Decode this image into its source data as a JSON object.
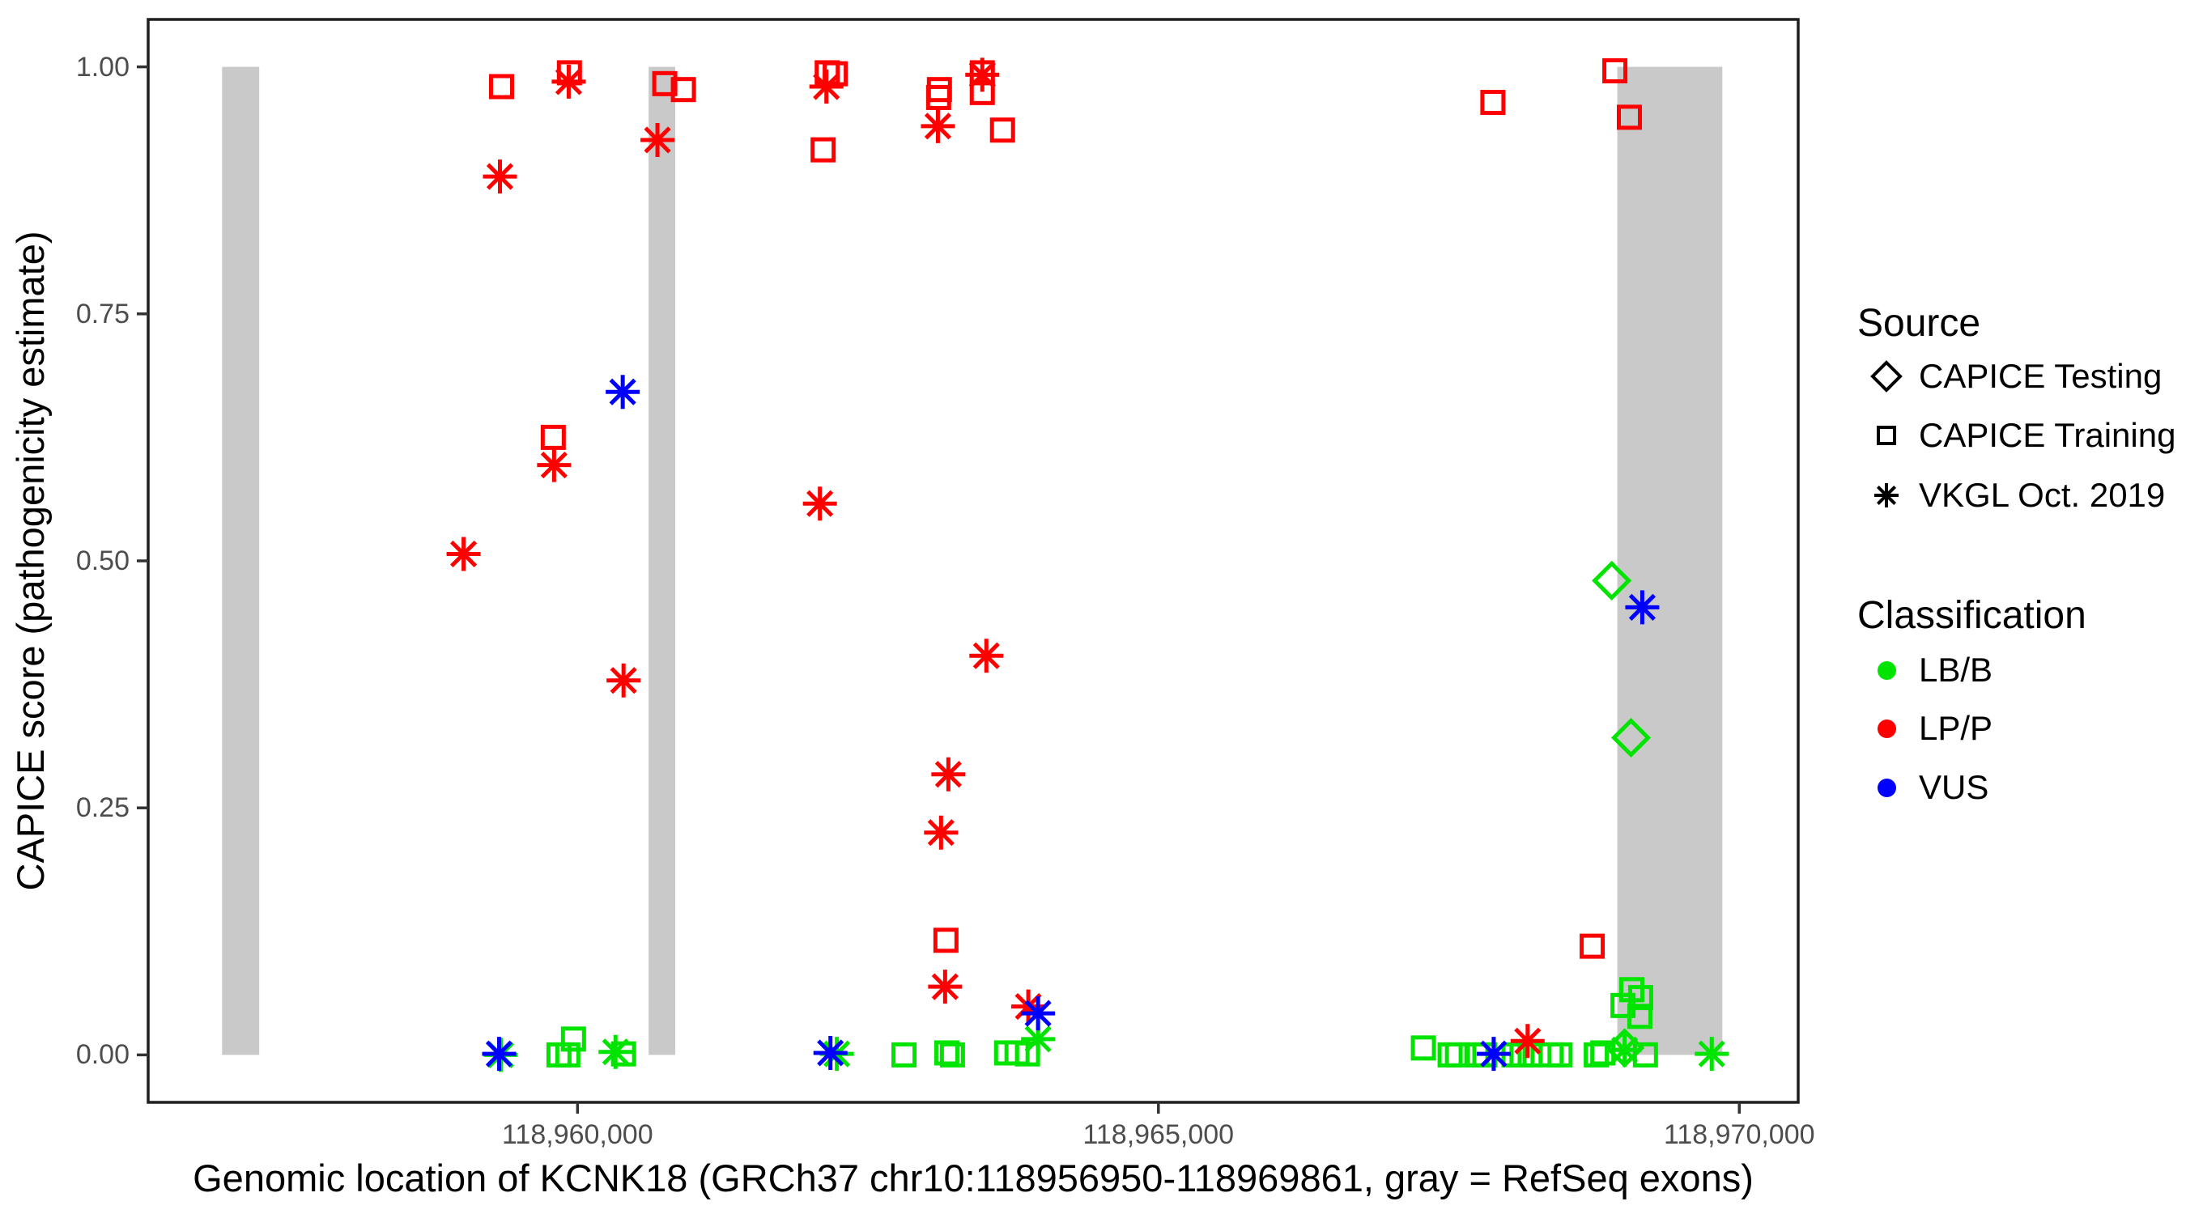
{
  "chart_data": {
    "type": "scatter",
    "title": "",
    "xlabel": "Genomic location of KCNK18 (GRCh37 chr10:118956950-118969861, gray = RefSeq exons)",
    "ylabel": "CAPICE score (pathogenicity estimate)",
    "xlim": [
      118956304,
      118970507
    ],
    "ylim": [
      -0.048,
      1.048
    ],
    "grid": false,
    "legend_position": "right",
    "x_ticks": {
      "values": [
        118960000,
        118965000,
        118970000
      ],
      "labels": [
        "118,960,000",
        "118,965,000",
        "118,970,000"
      ]
    },
    "y_ticks": {
      "values": [
        0,
        0.25,
        0.5,
        0.75,
        1.0
      ],
      "labels": [
        "0.00",
        "0.25",
        "0.50",
        "0.75",
        "1.00"
      ]
    },
    "exon_bars_note": "gray = RefSeq exons, drawn from score 0.00 to 1.00",
    "exon_bars_bp": [
      [
        118956940,
        118957260
      ],
      [
        118960612,
        118960841
      ],
      [
        118968950,
        118969854
      ]
    ],
    "series": [
      {
        "name": "LB/B CAPICE Training",
        "classification": "LB/B",
        "source": "CAPICE Training",
        "marker": "square",
        "color": "#00e400",
        "points": [
          [
            118959840,
            0.0
          ],
          [
            118959916,
            0.0
          ],
          [
            118959965,
            0.016
          ],
          [
            118960396,
            0.001
          ],
          [
            118962810,
            0.0
          ],
          [
            118963178,
            0.002
          ],
          [
            118963227,
            0.0
          ],
          [
            118963693,
            0.002
          ],
          [
            118963783,
            0.002
          ],
          [
            118963873,
            0.001
          ],
          [
            118967281,
            0.007
          ],
          [
            118967511,
            0.0
          ],
          [
            118967574,
            0.0
          ],
          [
            118967741,
            0.0
          ],
          [
            118967810,
            0.0
          ],
          [
            118968061,
            0.0
          ],
          [
            118968130,
            0.0
          ],
          [
            118968200,
            0.0
          ],
          [
            118968380,
            0.0
          ],
          [
            118968457,
            0.0
          ],
          [
            118968769,
            0.0
          ],
          [
            118968825,
            0.002
          ],
          [
            118969075,
            0.066
          ],
          [
            118969151,
            0.058
          ],
          [
            118968999,
            0.05
          ],
          [
            118969144,
            0.039
          ],
          [
            118969192,
            0.0
          ]
        ]
      },
      {
        "name": "LB/B CAPICE Testing",
        "classification": "LB/B",
        "source": "CAPICE Testing",
        "marker": "diamond",
        "color": "#00e400",
        "points": [
          [
            118968902,
            0.48
          ],
          [
            118969068,
            0.321
          ],
          [
            118969013,
            0.007
          ]
        ]
      },
      {
        "name": "LB/B VKGL Oct. 2019",
        "classification": "LB/B",
        "source": "VKGL Oct. 2019",
        "marker": "asterisk",
        "color": "#00e400",
        "points": [
          [
            118959339,
            0.0
          ],
          [
            118960327,
            0.003
          ],
          [
            118962232,
            0.001
          ],
          [
            118963964,
            0.016
          ],
          [
            118969013,
            0.005
          ],
          [
            118969763,
            0.001
          ]
        ]
      },
      {
        "name": "LP/P CAPICE Training",
        "classification": "LP/P",
        "source": "CAPICE Training",
        "marker": "square",
        "color": "#ff0000",
        "points": [
          [
            118959346,
            0.98
          ],
          [
            118959930,
            0.994
          ],
          [
            118960751,
            0.983
          ],
          [
            118960911,
            0.977
          ],
          [
            118962114,
            0.916
          ],
          [
            118962149,
            0.994
          ],
          [
            118962218,
            0.993
          ],
          [
            118963115,
            0.977
          ],
          [
            118963108,
            0.969
          ],
          [
            118963484,
            0.994
          ],
          [
            118963484,
            0.974
          ],
          [
            118963658,
            0.936
          ],
          [
            118959791,
            0.625
          ],
          [
            118963171,
            0.116
          ],
          [
            118967879,
            0.964
          ],
          [
            118968929,
            0.996
          ],
          [
            118969054,
            0.949
          ],
          [
            118968734,
            0.11
          ]
        ]
      },
      {
        "name": "LP/P VKGL Oct. 2019",
        "classification": "LP/P",
        "source": "VKGL Oct. 2019",
        "marker": "asterisk",
        "color": "#ff0000",
        "points": [
          [
            118959924,
            0.985
          ],
          [
            118959332,
            0.889
          ],
          [
            118960688,
            0.926
          ],
          [
            118962142,
            0.98
          ],
          [
            118963484,
            0.992
          ],
          [
            118963102,
            0.94
          ],
          [
            118959798,
            0.597
          ],
          [
            118959019,
            0.507
          ],
          [
            118960396,
            0.379
          ],
          [
            118962086,
            0.558
          ],
          [
            118963519,
            0.404
          ],
          [
            118963192,
            0.284
          ],
          [
            118963129,
            0.225
          ],
          [
            118963164,
            0.069
          ],
          [
            118963880,
            0.049
          ],
          [
            118968178,
            0.014
          ]
        ]
      },
      {
        "name": "VUS VKGL Oct. 2019",
        "classification": "VUS",
        "source": "VKGL Oct. 2019",
        "marker": "asterisk",
        "color": "#0000ff",
        "points": [
          [
            118960389,
            0.671
          ],
          [
            118969165,
            0.453
          ],
          [
            118963964,
            0.042
          ],
          [
            118959325,
            0.001
          ],
          [
            118962177,
            0.002
          ],
          [
            118967886,
            0.001
          ]
        ]
      }
    ]
  },
  "legend": {
    "source": {
      "title": "Source",
      "items": [
        {
          "label": "CAPICE Testing",
          "marker": "diamond"
        },
        {
          "label": "CAPICE Training",
          "marker": "square"
        },
        {
          "label": "VKGL Oct. 2019",
          "marker": "asterisk"
        }
      ]
    },
    "classification": {
      "title": "Classification",
      "items": [
        {
          "label": "LB/B",
          "color": "#00e400"
        },
        {
          "label": "LP/P",
          "color": "#ff0000"
        },
        {
          "label": "VUS",
          "color": "#0000ff"
        }
      ]
    }
  },
  "colors": {
    "exon_gray": "#c9c9c9",
    "panel_border": "#1f1f1f",
    "tick_mark": "#333333",
    "tick_label": "#4d4d4d",
    "lbb_green": "#00e400",
    "lpp_red": "#ff0000",
    "vus_blue": "#0000ff"
  }
}
